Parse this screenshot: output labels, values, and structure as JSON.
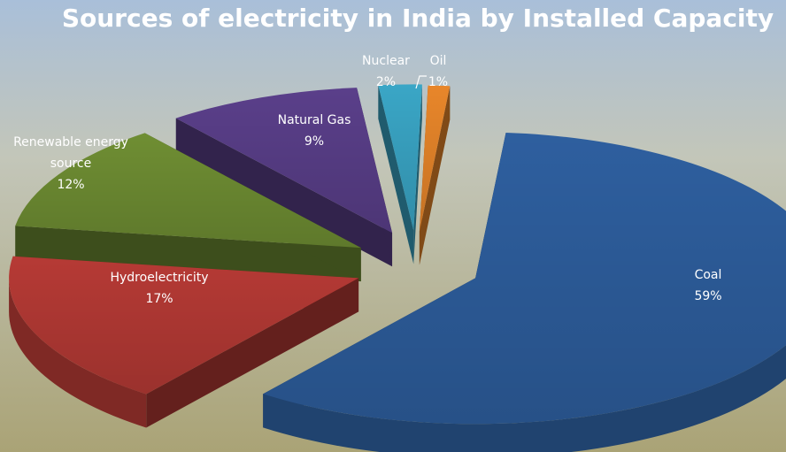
{
  "chart_data": {
    "type": "pie",
    "title": "Sources of electricity in India by Installed Capacity",
    "slices": [
      {
        "name": "Coal",
        "value": 59,
        "pct_label": "59%",
        "color": "#2e5f9f",
        "label_color": "#ffffff"
      },
      {
        "name": "Hydroelectricity",
        "value": 17,
        "pct_label": "17%",
        "color": "#b63a35",
        "label_color": "#ffffff"
      },
      {
        "name": "Renewable energy source",
        "name_lines": [
          "Renewable energy",
          "source"
        ],
        "value": 12,
        "pct_label": "12%",
        "color": "#6f8e33",
        "label_color": "#ffffff"
      },
      {
        "name": "Natural Gas",
        "value": 9,
        "pct_label": "9%",
        "color": "#5a3f8a",
        "label_color": "#ffffff"
      },
      {
        "name": "Nuclear",
        "value": 2,
        "pct_label": "2%",
        "color": "#3aa6c6",
        "label_color": "#ffffff"
      },
      {
        "name": "Oil",
        "value": 1,
        "pct_label": "1%",
        "color": "#e8862a",
        "label_color": "#ffffff"
      }
    ]
  }
}
